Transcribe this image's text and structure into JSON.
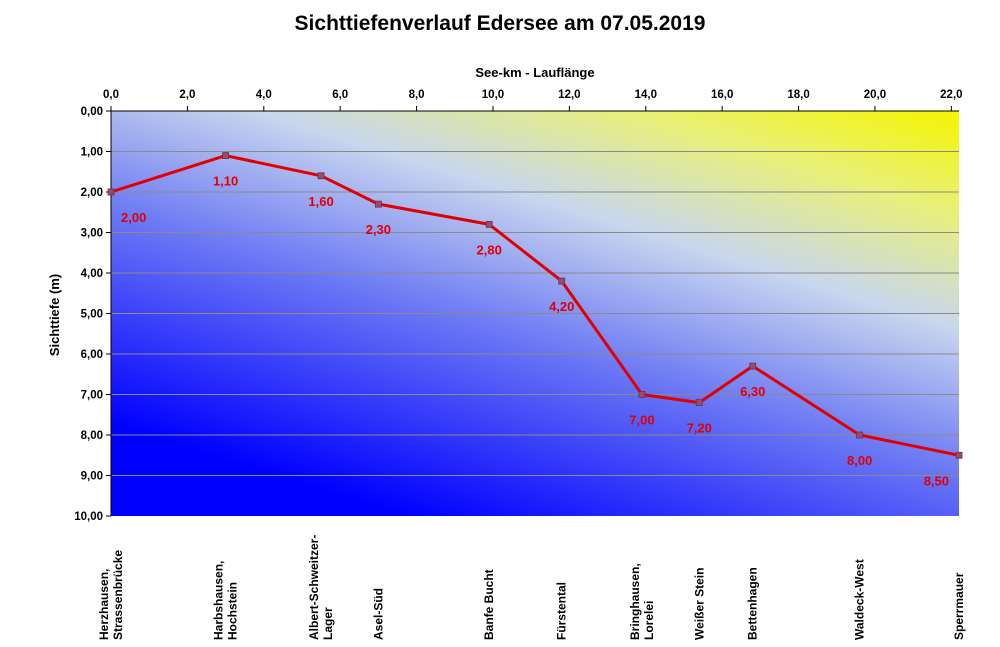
{
  "chart_data": {
    "type": "line",
    "title": "Sichttiefenverlauf Edersee am 07.05.2019",
    "xlabel": "See-km - Lauflänge",
    "ylabel": "Sichttiefe (m)",
    "xlim": [
      0,
      22.2
    ],
    "ylim": [
      0,
      10
    ],
    "y_inverted": true,
    "x_axis_position": "top",
    "x_ticks": [
      0,
      2,
      4,
      6,
      8,
      10,
      12,
      14,
      16,
      18,
      20,
      22
    ],
    "x_tick_labels": [
      "0,0",
      "2,0",
      "4,0",
      "6,0",
      "8,0",
      "10,0",
      "12,0",
      "14,0",
      "16,0",
      "18,0",
      "20,0",
      "22,0"
    ],
    "y_ticks": [
      0,
      1,
      2,
      3,
      4,
      5,
      6,
      7,
      8,
      9,
      10
    ],
    "y_tick_labels": [
      "0,00",
      "1,00",
      "2,00",
      "3,00",
      "4,00",
      "5,00",
      "6,00",
      "7,00",
      "8,00",
      "9,00",
      "10,00"
    ],
    "grid": true,
    "line_color": "#e00000",
    "marker_color": "#9b4a6e",
    "background_gradient": [
      "#f5f500",
      "#c8d6ee",
      "#0000ff"
    ],
    "series": [
      {
        "x": [
          0.0,
          3.0,
          5.5,
          7.0,
          9.9,
          11.8,
          13.9,
          15.4,
          16.8,
          19.6,
          22.2
        ],
        "values": [
          2.0,
          1.1,
          1.6,
          2.3,
          2.8,
          4.2,
          7.0,
          7.2,
          6.3,
          8.0,
          8.5
        ],
        "labels": [
          "2,00",
          "1,10",
          "1,60",
          "2,30",
          "2,80",
          "4,20",
          "7,00",
          "7,20",
          "6,30",
          "8,00",
          "8,50"
        ]
      }
    ],
    "stations": [
      {
        "x": 0.0,
        "lines": [
          "Herzhausen,",
          "Strassenbrücke"
        ]
      },
      {
        "x": 3.0,
        "lines": [
          "Harbshausen,",
          "Hochstein"
        ]
      },
      {
        "x": 5.5,
        "lines": [
          "Albert-Schweitzer-",
          "Lager"
        ]
      },
      {
        "x": 7.0,
        "lines": [
          "Asel-Süd"
        ]
      },
      {
        "x": 9.9,
        "lines": [
          "Banfe Bucht"
        ]
      },
      {
        "x": 11.8,
        "lines": [
          "Fürstental"
        ]
      },
      {
        "x": 13.9,
        "lines": [
          "Bringhausen,",
          "Lorelei"
        ]
      },
      {
        "x": 15.4,
        "lines": [
          "Weißer Stein"
        ]
      },
      {
        "x": 16.8,
        "lines": [
          "Bettenhagen"
        ]
      },
      {
        "x": 19.6,
        "lines": [
          "Waldeck-West"
        ]
      },
      {
        "x": 22.2,
        "lines": [
          "Sperrmauer"
        ]
      }
    ]
  }
}
